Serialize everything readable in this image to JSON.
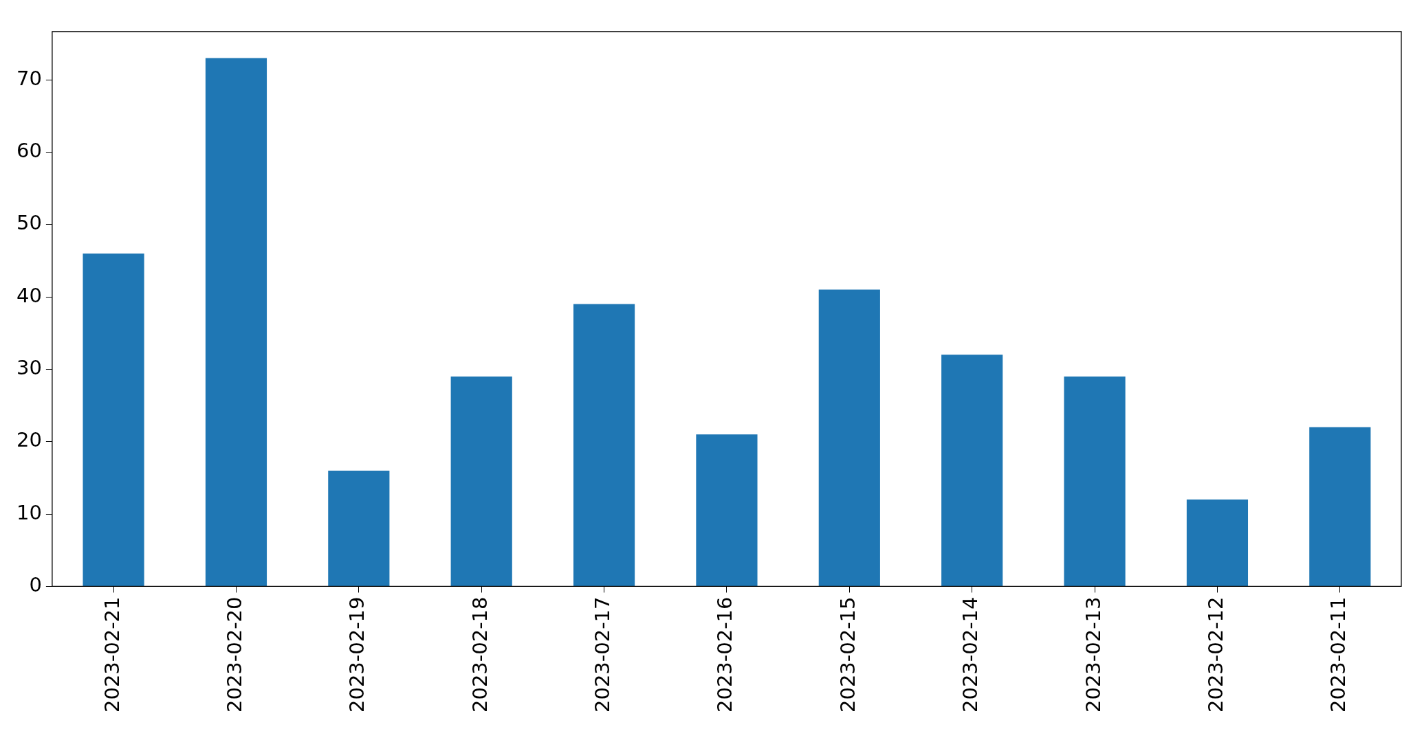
{
  "chart_data": {
    "type": "bar",
    "categories": [
      "2023-02-21",
      "2023-02-20",
      "2023-02-19",
      "2023-02-18",
      "2023-02-17",
      "2023-02-16",
      "2023-02-15",
      "2023-02-14",
      "2023-02-13",
      "2023-02-12",
      "2023-02-11"
    ],
    "values": [
      46,
      73,
      16,
      29,
      39,
      21,
      41,
      32,
      29,
      12,
      22
    ],
    "color": "#1f77b4",
    "ylim": [
      0,
      76.65
    ],
    "yticks": [
      0,
      10,
      20,
      30,
      40,
      50,
      60,
      70
    ],
    "grid": false,
    "legend": false
  }
}
